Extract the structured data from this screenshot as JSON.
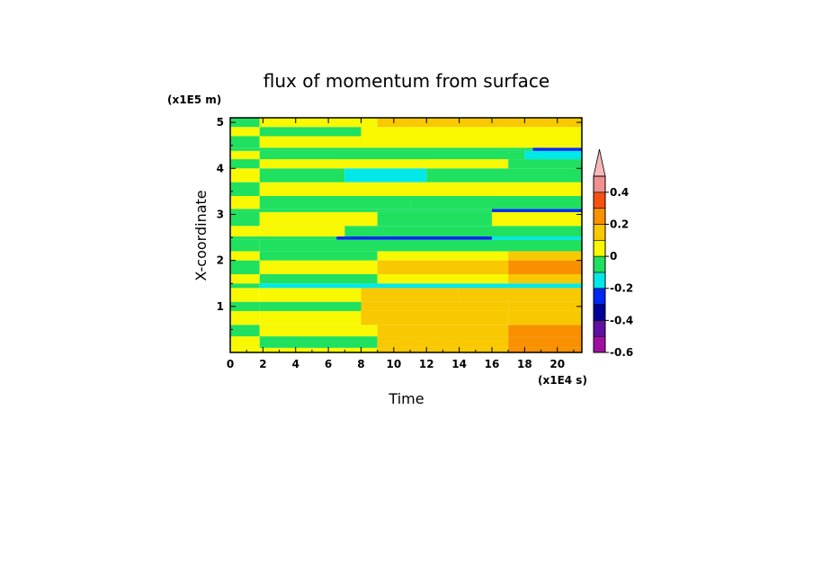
{
  "chart_data": {
    "type": "heatmap",
    "title": "flux of momentum from surface",
    "xlabel": "Time",
    "ylabel": "X-coordinate",
    "x_unit": "(x1E4 s)",
    "y_unit": "(x1E5 m)",
    "xlim": [
      0,
      21.5
    ],
    "ylim": [
      0,
      5.1
    ],
    "x_ticks": [
      "0",
      "2",
      "4",
      "6",
      "8",
      "10",
      "12",
      "14",
      "16",
      "18",
      "20"
    ],
    "x_tick_values": [
      0,
      2,
      4,
      6,
      8,
      10,
      12,
      14,
      16,
      18,
      20
    ],
    "y_ticks": [
      "1",
      "2",
      "3",
      "4",
      "5"
    ],
    "y_tick_values": [
      1,
      2,
      3,
      4,
      5
    ],
    "colorbar": {
      "tick_labels": [
        "0.4",
        "0.2",
        "0",
        "-0.2",
        "-0.4",
        "-0.6"
      ],
      "tick_values": [
        0.4,
        0.2,
        0,
        -0.2,
        -0.4,
        -0.6
      ],
      "levels": [
        -0.6,
        -0.5,
        -0.4,
        -0.3,
        -0.2,
        -0.1,
        0,
        0.1,
        0.2,
        0.3,
        0.4,
        0.5
      ],
      "colors": [
        "#a010a0",
        "#6010a0",
        "#000098",
        "#0028f0",
        "#00e8e8",
        "#20e060",
        "#f8f800",
        "#f8c800",
        "#f89000",
        "#f85010",
        "#f09090"
      ],
      "extend_max_color": "#f8b8b8"
    },
    "grid": false,
    "bands": [
      {
        "y0": 0.0,
        "y1": 0.1,
        "segments": [
          [
            0,
            1.8,
            0.05
          ],
          [
            1.8,
            9,
            0.05
          ],
          [
            9,
            17,
            0.12
          ],
          [
            17,
            21.5,
            0.22
          ]
        ]
      },
      {
        "y0": 0.1,
        "y1": 0.35,
        "segments": [
          [
            0,
            1.8,
            0.05
          ],
          [
            1.8,
            9,
            -0.05
          ],
          [
            9,
            17,
            0.12
          ],
          [
            17,
            21.5,
            0.25
          ]
        ]
      },
      {
        "y0": 0.35,
        "y1": 0.6,
        "segments": [
          [
            0,
            1.8,
            -0.05
          ],
          [
            1.8,
            9,
            0.05
          ],
          [
            9,
            17,
            0.15
          ],
          [
            17,
            21.5,
            0.22
          ]
        ]
      },
      {
        "y0": 0.6,
        "y1": 0.9,
        "segments": [
          [
            0,
            1.8,
            0.05
          ],
          [
            1.8,
            8,
            0.05
          ],
          [
            8,
            17,
            0.12
          ],
          [
            17,
            21.5,
            0.15
          ]
        ]
      },
      {
        "y0": 0.9,
        "y1": 1.1,
        "segments": [
          [
            0,
            1.8,
            -0.05
          ],
          [
            1.8,
            8,
            -0.05
          ],
          [
            8,
            17,
            0.12
          ],
          [
            17,
            21.5,
            0.12
          ]
        ]
      },
      {
        "y0": 1.1,
        "y1": 1.4,
        "segments": [
          [
            0,
            1.8,
            0.05
          ],
          [
            1.8,
            8,
            0.05
          ],
          [
            8,
            14,
            0.12
          ],
          [
            14,
            21.5,
            0.15
          ]
        ]
      },
      {
        "y0": 1.4,
        "y1": 1.5,
        "segments": [
          [
            0,
            1.8,
            -0.05
          ],
          [
            1.8,
            21.5,
            -0.15
          ]
        ]
      },
      {
        "y0": 1.5,
        "y1": 1.7,
        "segments": [
          [
            0,
            1.8,
            0.05
          ],
          [
            1.8,
            9,
            -0.05
          ],
          [
            9,
            17,
            0.05
          ],
          [
            17,
            21.5,
            0.15
          ]
        ]
      },
      {
        "y0": 1.7,
        "y1": 2.0,
        "segments": [
          [
            0,
            1.8,
            -0.05
          ],
          [
            1.8,
            9,
            0.05
          ],
          [
            9,
            17,
            0.12
          ],
          [
            17,
            21.5,
            0.25
          ]
        ]
      },
      {
        "y0": 2.0,
        "y1": 2.2,
        "segments": [
          [
            0,
            1.8,
            0.05
          ],
          [
            1.8,
            9,
            -0.05
          ],
          [
            9,
            17,
            0.05
          ],
          [
            17,
            21.5,
            0.15
          ]
        ]
      },
      {
        "y0": 2.2,
        "y1": 2.45,
        "segments": [
          [
            0,
            1.8,
            -0.05
          ],
          [
            1.8,
            21.5,
            -0.05
          ]
        ]
      },
      {
        "y0": 2.45,
        "y1": 2.52,
        "segments": [
          [
            0,
            6.5,
            -0.05
          ],
          [
            6.5,
            16,
            -0.22
          ],
          [
            16,
            21.5,
            -0.15
          ]
        ]
      },
      {
        "y0": 2.52,
        "y1": 2.75,
        "segments": [
          [
            0,
            1.8,
            0.05
          ],
          [
            1.8,
            7,
            0.05
          ],
          [
            7,
            21.5,
            -0.05
          ]
        ]
      },
      {
        "y0": 2.75,
        "y1": 3.05,
        "segments": [
          [
            0,
            1.8,
            -0.05
          ],
          [
            1.8,
            9,
            0.05
          ],
          [
            9,
            16,
            -0.05
          ],
          [
            16,
            21.5,
            0.05
          ]
        ]
      },
      {
        "y0": 3.05,
        "y1": 3.12,
        "segments": [
          [
            0,
            9,
            -0.05
          ],
          [
            9,
            16,
            -0.05
          ],
          [
            16,
            21.5,
            -0.25
          ]
        ]
      },
      {
        "y0": 3.12,
        "y1": 3.4,
        "segments": [
          [
            0,
            1.8,
            0.05
          ],
          [
            1.8,
            11,
            -0.05
          ],
          [
            11,
            21.5,
            -0.05
          ]
        ]
      },
      {
        "y0": 3.4,
        "y1": 3.7,
        "segments": [
          [
            0,
            1.8,
            -0.05
          ],
          [
            1.8,
            11,
            0.05
          ],
          [
            11,
            21.5,
            0.05
          ]
        ]
      },
      {
        "y0": 3.7,
        "y1": 4.0,
        "segments": [
          [
            0,
            1.8,
            0.05
          ],
          [
            1.8,
            7,
            -0.05
          ],
          [
            7,
            12,
            -0.15
          ],
          [
            12,
            21.5,
            -0.05
          ]
        ]
      },
      {
        "y0": 4.0,
        "y1": 4.2,
        "segments": [
          [
            0,
            1.8,
            -0.05
          ],
          [
            1.8,
            8,
            0.05
          ],
          [
            8,
            17,
            0.05
          ],
          [
            17,
            21.5,
            -0.05
          ]
        ]
      },
      {
        "y0": 4.2,
        "y1": 4.38,
        "segments": [
          [
            0,
            1.8,
            0.05
          ],
          [
            1.8,
            8,
            -0.05
          ],
          [
            8,
            18,
            -0.05
          ],
          [
            18,
            21.5,
            -0.15
          ]
        ]
      },
      {
        "y0": 4.38,
        "y1": 4.45,
        "segments": [
          [
            0,
            18.5,
            -0.05
          ],
          [
            18.5,
            21.5,
            -0.22
          ]
        ]
      },
      {
        "y0": 4.45,
        "y1": 4.7,
        "segments": [
          [
            0,
            1.8,
            -0.05
          ],
          [
            1.8,
            8,
            0.05
          ],
          [
            8,
            21.5,
            0.05
          ]
        ]
      },
      {
        "y0": 4.7,
        "y1": 4.9,
        "segments": [
          [
            0,
            1.8,
            0.05
          ],
          [
            1.8,
            8,
            -0.05
          ],
          [
            8,
            21.5,
            0.05
          ]
        ]
      },
      {
        "y0": 4.9,
        "y1": 5.1,
        "segments": [
          [
            0,
            1.8,
            -0.05
          ],
          [
            1.8,
            9,
            0.05
          ],
          [
            9,
            21.5,
            0.12
          ]
        ]
      }
    ]
  }
}
